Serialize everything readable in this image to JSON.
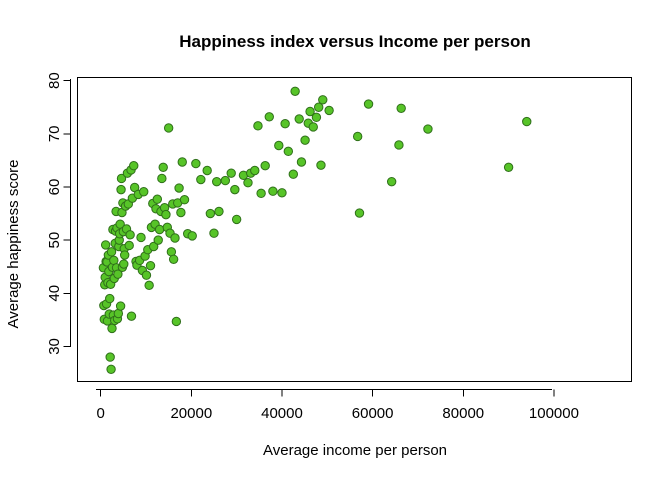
{
  "chart_data": {
    "type": "scatter",
    "title": "Happiness index versus Income per person",
    "xlabel": "Average income per person",
    "ylabel": "Average happiness score",
    "xlim": [
      -5000,
      117000
    ],
    "ylim": [
      23.5,
      80.5
    ],
    "xticks": [
      0,
      20000,
      40000,
      60000,
      80000,
      100000
    ],
    "xtick_labels": [
      "0",
      "20000",
      "40000",
      "60000",
      "80000",
      "100000"
    ],
    "yticks": [
      30,
      40,
      50,
      60,
      70,
      80
    ],
    "ytick_labels": [
      "30",
      "40",
      "50",
      "60",
      "70",
      "80"
    ],
    "grid": false,
    "legend": "none",
    "colors": {
      "point_fill": "#57c428",
      "point_stroke": "#2f6f1a",
      "axis": "#000000",
      "text": "#000000"
    },
    "points": [
      [
        600,
        44.8
      ],
      [
        700,
        37.7
      ],
      [
        800,
        35.1
      ],
      [
        900,
        41.6
      ],
      [
        1000,
        43.0
      ],
      [
        1100,
        49.1
      ],
      [
        1200,
        46.0
      ],
      [
        1300,
        38.0
      ],
      [
        1400,
        45.9
      ],
      [
        1500,
        34.8
      ],
      [
        1600,
        42.0
      ],
      [
        1700,
        47.2
      ],
      [
        1800,
        44.1
      ],
      [
        1900,
        36.1
      ],
      [
        2000,
        39.0
      ],
      [
        2100,
        28.0
      ],
      [
        2200,
        41.7
      ],
      [
        2300,
        25.7
      ],
      [
        2400,
        47.8
      ],
      [
        2500,
        33.4
      ],
      [
        2600,
        44.9
      ],
      [
        2700,
        52.0
      ],
      [
        2800,
        35.9
      ],
      [
        2900,
        46.2
      ],
      [
        3000,
        42.8
      ],
      [
        3100,
        34.9
      ],
      [
        3200,
        49.4
      ],
      [
        3300,
        51.7
      ],
      [
        3400,
        55.4
      ],
      [
        3500,
        44.8
      ],
      [
        3600,
        52.3
      ],
      [
        3700,
        35.2
      ],
      [
        3800,
        43.6
      ],
      [
        3900,
        36.2
      ],
      [
        4000,
        48.8
      ],
      [
        4100,
        50.0
      ],
      [
        4200,
        51.2
      ],
      [
        4300,
        53.0
      ],
      [
        4400,
        37.6
      ],
      [
        4500,
        59.5
      ],
      [
        4600,
        61.6
      ],
      [
        4700,
        55.2
      ],
      [
        4800,
        44.9
      ],
      [
        4900,
        57.0
      ],
      [
        5000,
        51.6
      ],
      [
        5100,
        45.5
      ],
      [
        5200,
        48.4
      ],
      [
        5300,
        47.2
      ],
      [
        5500,
        56.4
      ],
      [
        5700,
        52.1
      ],
      [
        5900,
        62.6
      ],
      [
        6100,
        56.8
      ],
      [
        6300,
        49.0
      ],
      [
        6500,
        51.0
      ],
      [
        6700,
        63.2
      ],
      [
        6800,
        35.7
      ],
      [
        7000,
        57.9
      ],
      [
        7300,
        64.0
      ],
      [
        7500,
        59.9
      ],
      [
        7800,
        46.0
      ],
      [
        8000,
        45.3
      ],
      [
        8300,
        58.6
      ],
      [
        8600,
        46.2
      ],
      [
        8900,
        50.5
      ],
      [
        9200,
        44.3
      ],
      [
        9500,
        59.1
      ],
      [
        9800,
        47.0
      ],
      [
        10100,
        43.4
      ],
      [
        10400,
        48.2
      ],
      [
        10700,
        41.5
      ],
      [
        11000,
        45.2
      ],
      [
        11200,
        52.4
      ],
      [
        11500,
        56.9
      ],
      [
        11700,
        48.8
      ],
      [
        12000,
        53.0
      ],
      [
        12200,
        55.9
      ],
      [
        12500,
        57.7
      ],
      [
        12700,
        50.0
      ],
      [
        13000,
        52.0
      ],
      [
        13300,
        55.4
      ],
      [
        13500,
        61.6
      ],
      [
        13800,
        63.7
      ],
      [
        14100,
        56.1
      ],
      [
        14400,
        54.8
      ],
      [
        14700,
        52.4
      ],
      [
        15000,
        71.1
      ],
      [
        15300,
        51.3
      ],
      [
        15600,
        47.8
      ],
      [
        15900,
        56.8
      ],
      [
        16100,
        46.4
      ],
      [
        16400,
        50.4
      ],
      [
        16700,
        34.7
      ],
      [
        17000,
        57.0
      ],
      [
        17300,
        59.8
      ],
      [
        17700,
        55.2
      ],
      [
        18000,
        64.7
      ],
      [
        18500,
        57.6
      ],
      [
        19200,
        51.2
      ],
      [
        20200,
        50.8
      ],
      [
        21000,
        64.4
      ],
      [
        22100,
        61.4
      ],
      [
        23500,
        63.1
      ],
      [
        24200,
        55.0
      ],
      [
        25000,
        51.3
      ],
      [
        25600,
        61.0
      ],
      [
        26100,
        55.4
      ],
      [
        27500,
        61.2
      ],
      [
        28800,
        62.6
      ],
      [
        29600,
        59.5
      ],
      [
        30000,
        53.9
      ],
      [
        31500,
        62.2
      ],
      [
        32500,
        60.8
      ],
      [
        33100,
        62.6
      ],
      [
        34000,
        63.1
      ],
      [
        34700,
        71.5
      ],
      [
        35400,
        58.8
      ],
      [
        36300,
        64.0
      ],
      [
        37200,
        73.2
      ],
      [
        38000,
        59.2
      ],
      [
        39300,
        67.8
      ],
      [
        40000,
        58.9
      ],
      [
        40700,
        71.9
      ],
      [
        41400,
        66.7
      ],
      [
        42500,
        62.4
      ],
      [
        42900,
        78.0
      ],
      [
        43800,
        72.8
      ],
      [
        44300,
        64.7
      ],
      [
        45100,
        68.8
      ],
      [
        45800,
        72.0
      ],
      [
        46200,
        74.2
      ],
      [
        46900,
        71.3
      ],
      [
        47600,
        73.1
      ],
      [
        48100,
        75.0
      ],
      [
        48600,
        64.1
      ],
      [
        49000,
        76.4
      ],
      [
        50400,
        74.4
      ],
      [
        56700,
        69.5
      ],
      [
        57100,
        55.1
      ],
      [
        59100,
        75.6
      ],
      [
        64200,
        61.0
      ],
      [
        65800,
        67.9
      ],
      [
        66300,
        74.8
      ],
      [
        72200,
        70.9
      ],
      [
        90000,
        63.7
      ],
      [
        94000,
        72.3
      ]
    ]
  }
}
